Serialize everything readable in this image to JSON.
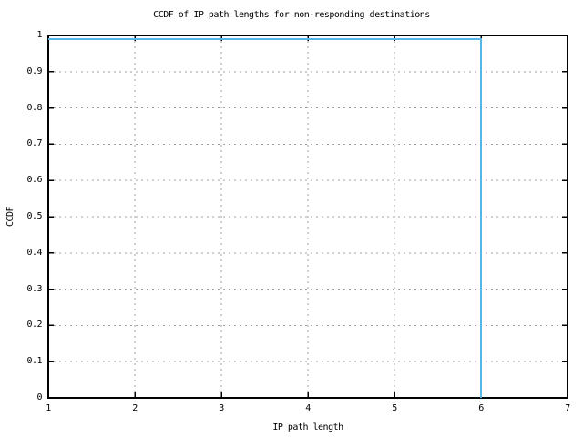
{
  "chart_data": {
    "type": "line",
    "subtype": "ccdf-step",
    "title": "CCDF of IP path lengths for non-responding destinations",
    "xlabel": "IP path length",
    "ylabel": "CCDF",
    "xlim": [
      1,
      7
    ],
    "ylim": [
      0,
      1
    ],
    "grid": true,
    "legend": "none",
    "x_ticks": [
      {
        "value": 1,
        "label": "1"
      },
      {
        "value": 2,
        "label": "2"
      },
      {
        "value": 3,
        "label": "3"
      },
      {
        "value": 4,
        "label": "4"
      },
      {
        "value": 5,
        "label": "5"
      },
      {
        "value": 6,
        "label": "6"
      },
      {
        "value": 7,
        "label": "7"
      }
    ],
    "y_ticks": [
      {
        "value": 0,
        "label": "0"
      },
      {
        "value": 0.1,
        "label": "0.1"
      },
      {
        "value": 0.2,
        "label": "0.2"
      },
      {
        "value": 0.3,
        "label": "0.3"
      },
      {
        "value": 0.4,
        "label": "0.4"
      },
      {
        "value": 0.5,
        "label": "0.5"
      },
      {
        "value": 0.6,
        "label": "0.6"
      },
      {
        "value": 0.7,
        "label": "0.7"
      },
      {
        "value": 0.8,
        "label": "0.8"
      },
      {
        "value": 0.9,
        "label": "0.9"
      },
      {
        "value": 1,
        "label": "1"
      }
    ],
    "series": [
      {
        "name": "CCDF",
        "color": "#56b4e9",
        "points": [
          [
            1,
            0.99
          ],
          [
            6,
            0.99
          ],
          [
            6,
            0
          ]
        ]
      }
    ],
    "colors": {
      "background": "#ffffff",
      "border": "#000000",
      "grid": "#a0a0a0",
      "text": "#000000",
      "series": "#56b4e9"
    }
  }
}
